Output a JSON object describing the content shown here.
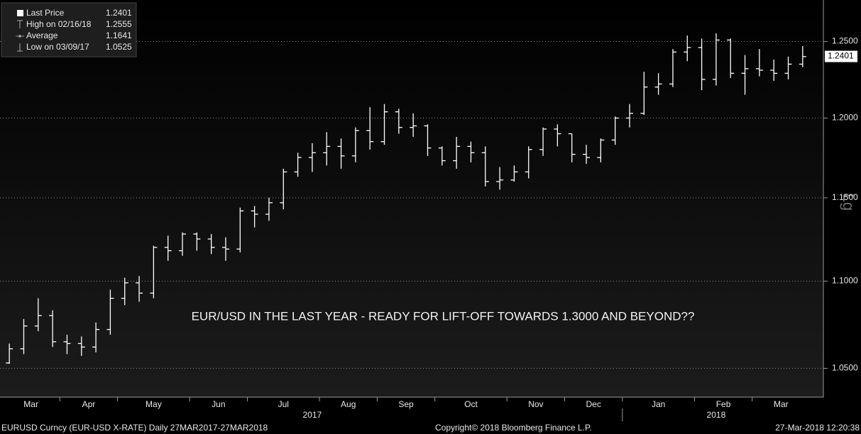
{
  "chart_data": {
    "type": "ohlc",
    "color": "#ffffff",
    "log_scale": true,
    "grid": true,
    "scale_label": "Lg",
    "annotation": "EUR/USD IN THE LAST YEAR - READY FOR LIFT-OFF TOWARDS 1.3000 AND BEYOND??",
    "legend": [
      {
        "label": "Last Price",
        "value": 1.2401
      },
      {
        "label": "High on 02/16/18",
        "value": 1.2555
      },
      {
        "label": "Average",
        "value": 1.1641
      },
      {
        "label": "Low on 03/09/17",
        "value": 1.0525
      }
    ],
    "categories": [
      "Mar",
      null,
      null,
      null,
      "Apr",
      null,
      null,
      null,
      "May",
      null,
      null,
      null,
      null,
      "Jun",
      null,
      null,
      null,
      "Jul",
      null,
      null,
      null,
      null,
      "Aug",
      null,
      null,
      null,
      "Sep",
      null,
      null,
      null,
      "Oct",
      null,
      null,
      null,
      null,
      "Nov",
      null,
      null,
      null,
      "Dec",
      null,
      null,
      null,
      "Jan",
      null,
      null,
      null,
      null,
      "Feb",
      null,
      null,
      null,
      "Mar",
      null,
      null,
      null
    ],
    "years": [
      "2017",
      "2018"
    ],
    "open": [
      1.053,
      1.061,
      1.074,
      1.08,
      1.065,
      1.064,
      1.062,
      1.072,
      1.09,
      1.099,
      1.093,
      1.12,
      1.118,
      1.128,
      1.125,
      1.12,
      1.119,
      1.142,
      1.14,
      1.147,
      1.166,
      1.175,
      1.178,
      1.182,
      1.176,
      1.192,
      1.185,
      1.204,
      1.194,
      1.195,
      1.181,
      1.173,
      1.182,
      1.178,
      1.16,
      1.161,
      1.166,
      1.18,
      1.193,
      1.19,
      1.177,
      1.175,
      1.186,
      1.2,
      1.203,
      1.22,
      1.222,
      1.243,
      1.246,
      1.225,
      1.251,
      1.229,
      1.232,
      1.231,
      1.229,
      1.235
    ],
    "high": [
      1.064,
      1.078,
      1.09,
      1.083,
      1.069,
      1.068,
      1.076,
      1.095,
      1.102,
      1.103,
      1.121,
      1.127,
      1.129,
      1.129,
      1.128,
      1.126,
      1.144,
      1.145,
      1.15,
      1.168,
      1.178,
      1.184,
      1.191,
      1.187,
      1.194,
      1.207,
      1.209,
      1.206,
      1.203,
      1.196,
      1.182,
      1.188,
      1.185,
      1.182,
      1.169,
      1.17,
      1.182,
      1.194,
      1.196,
      1.19,
      1.183,
      1.187,
      1.201,
      1.209,
      1.23,
      1.229,
      1.245,
      1.254,
      1.252,
      1.2555,
      1.252,
      1.241,
      1.245,
      1.238,
      1.24,
      1.247
    ],
    "low": [
      1.0525,
      1.058,
      1.071,
      1.062,
      1.058,
      1.057,
      1.059,
      1.069,
      1.086,
      1.088,
      1.09,
      1.112,
      1.115,
      1.118,
      1.116,
      1.112,
      1.117,
      1.132,
      1.136,
      1.143,
      1.163,
      1.166,
      1.17,
      1.168,
      1.172,
      1.18,
      1.183,
      1.19,
      1.188,
      1.176,
      1.17,
      1.168,
      1.172,
      1.157,
      1.155,
      1.16,
      1.162,
      1.176,
      1.182,
      1.172,
      1.171,
      1.172,
      1.183,
      1.194,
      1.202,
      1.215,
      1.22,
      1.237,
      1.218,
      1.221,
      1.226,
      1.215,
      1.227,
      1.224,
      1.225,
      1.233
    ],
    "close": [
      1.061,
      1.074,
      1.08,
      1.065,
      1.064,
      1.062,
      1.072,
      1.09,
      1.099,
      1.093,
      1.12,
      1.118,
      1.128,
      1.125,
      1.12,
      1.119,
      1.142,
      1.14,
      1.147,
      1.166,
      1.175,
      1.178,
      1.182,
      1.176,
      1.192,
      1.185,
      1.204,
      1.194,
      1.195,
      1.181,
      1.173,
      1.182,
      1.178,
      1.16,
      1.161,
      1.166,
      1.18,
      1.193,
      1.19,
      1.177,
      1.175,
      1.186,
      1.2,
      1.203,
      1.22,
      1.222,
      1.243,
      1.246,
      1.225,
      1.251,
      1.229,
      1.232,
      1.231,
      1.229,
      1.235,
      1.24
    ],
    "ylim": [
      1.034,
      1.278
    ],
    "yticks": [
      {
        "value": 1.05,
        "label": "1.0500"
      },
      {
        "value": 1.1,
        "label": "1.1000"
      },
      {
        "value": 1.15,
        "label": "1.1500"
      },
      {
        "value": 1.2,
        "label": "1.2000"
      },
      {
        "value": 1.25,
        "label": "1.2500"
      }
    ],
    "footer": {
      "left": "EURUSD Curncy (EUR-USD X-RATE)  Daily 27MAR2017-27MAR2018",
      "center": "Copyright© 2018 Bloomberg Finance L.P.",
      "right": "27-Mar-2018 12:20:38"
    }
  }
}
